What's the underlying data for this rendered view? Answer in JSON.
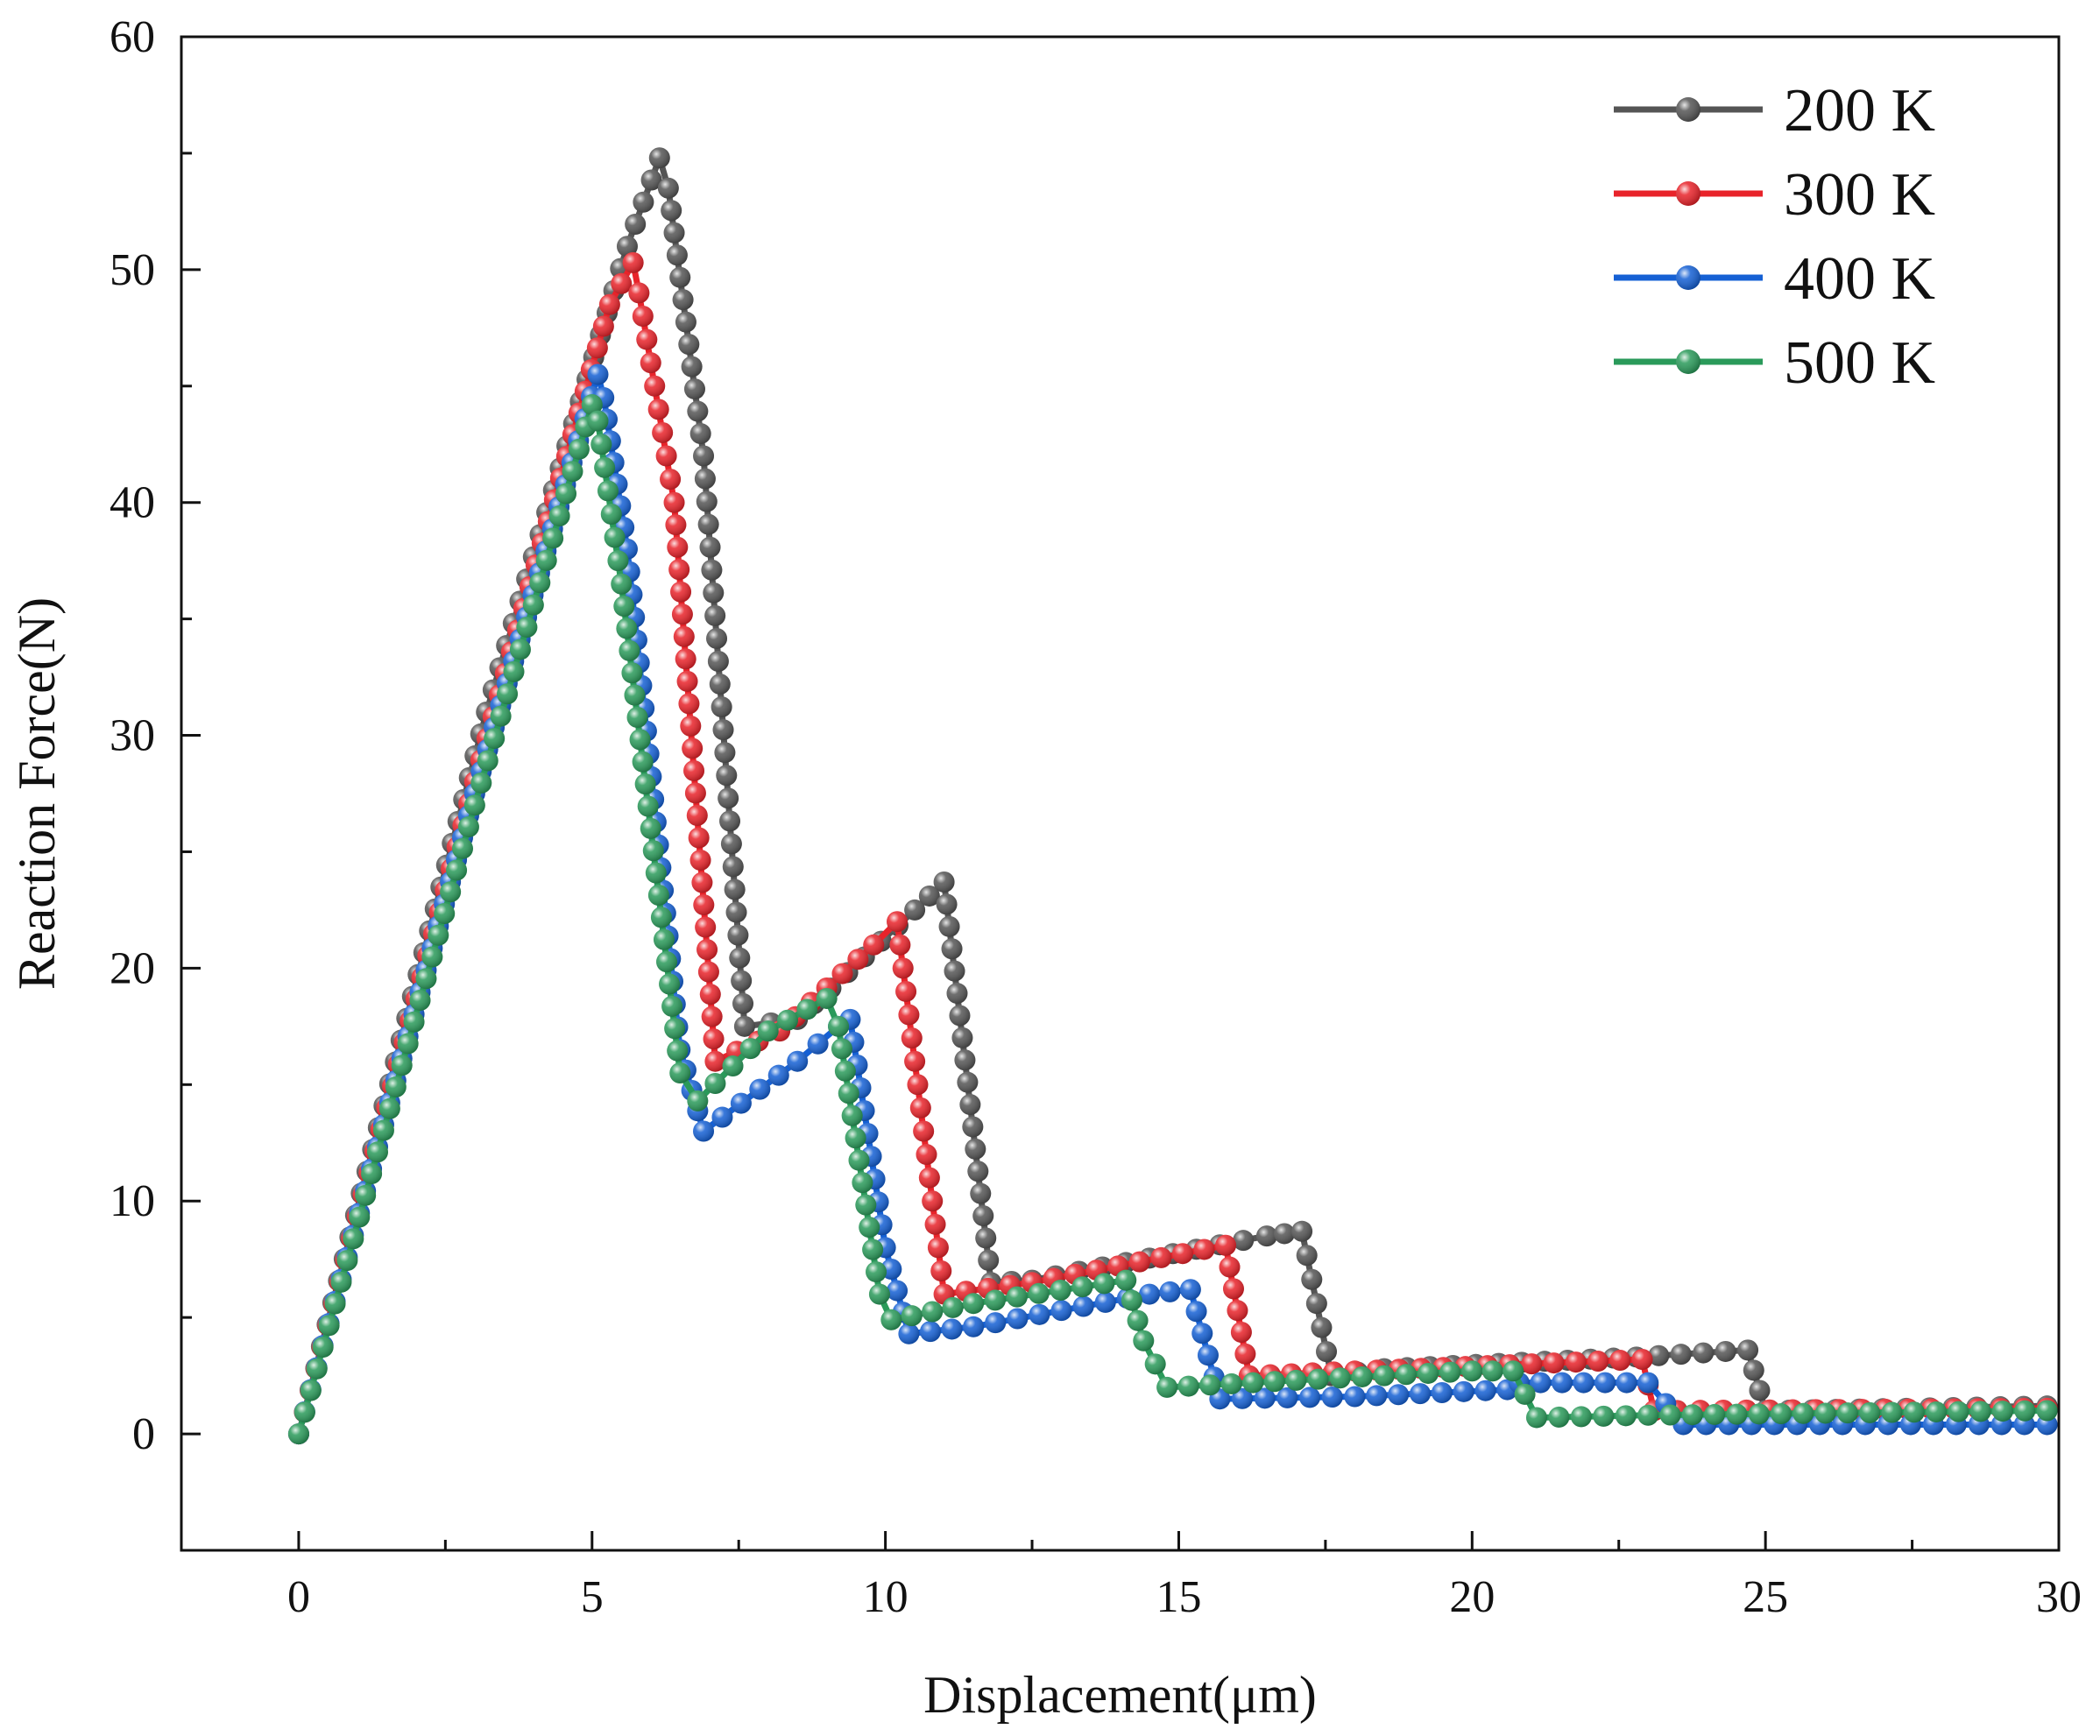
{
  "chart_data": {
    "type": "line",
    "title": "",
    "xlabel": "Displacement(μm)",
    "ylabel": "Reaction Force(N)",
    "xlim": [
      -2,
      30
    ],
    "ylim": [
      -5,
      60
    ],
    "xticks": [
      0,
      5,
      10,
      15,
      20,
      25,
      30
    ],
    "yticks": [
      0,
      10,
      20,
      30,
      40,
      50,
      60
    ],
    "xtick_labels": [
      "0",
      "5",
      "10",
      "15",
      "20",
      "25",
      "30"
    ],
    "ytick_labels": [
      "0",
      "10",
      "20",
      "30",
      "40",
      "50",
      "60"
    ],
    "grid": false,
    "legend_position": "top-right",
    "marker": "circle",
    "series": [
      {
        "name": "200 K",
        "color": "#555555",
        "points": [
          [
            0,
            0
          ],
          [
            3.2,
            31
          ],
          [
            5.6,
            51
          ],
          [
            6.15,
            54.8
          ],
          [
            6.3,
            53.5
          ],
          [
            6.9,
            42
          ],
          [
            7.6,
            17.5
          ],
          [
            8.5,
            17.8
          ],
          [
            10.5,
            22.5
          ],
          [
            11,
            23.7
          ],
          [
            11.8,
            6.5
          ],
          [
            12.5,
            6.6
          ],
          [
            16.5,
            8.5
          ],
          [
            17.1,
            8.7
          ],
          [
            17.6,
            2.5
          ],
          [
            18.5,
            2.8
          ],
          [
            22.8,
            3.3
          ],
          [
            24.7,
            3.6
          ],
          [
            25.0,
            1.0
          ],
          [
            29.8,
            1.2
          ]
        ]
      },
      {
        "name": "300 K",
        "color": "#e8232a",
        "points": [
          [
            0,
            0
          ],
          [
            3,
            28
          ],
          [
            5.3,
            48.5
          ],
          [
            5.7,
            50.3
          ],
          [
            5.8,
            49
          ],
          [
            6.4,
            40
          ],
          [
            7.1,
            16
          ],
          [
            8.2,
            17.3
          ],
          [
            9.8,
            21
          ],
          [
            10.2,
            22
          ],
          [
            11.0,
            6.0
          ],
          [
            12.5,
            6.5
          ],
          [
            15.8,
            8.1
          ],
          [
            16.2,
            2.5
          ],
          [
            18,
            2.7
          ],
          [
            22.9,
            3.2
          ],
          [
            23.1,
            1.0
          ],
          [
            29.8,
            1.1
          ]
        ]
      },
      {
        "name": "400 K",
        "color": "#1560d4",
        "points": [
          [
            0,
            0
          ],
          [
            3,
            27.5
          ],
          [
            5.1,
            45.5
          ],
          [
            5.2,
            44.5
          ],
          [
            5.6,
            38
          ],
          [
            6.5,
            16.5
          ],
          [
            6.9,
            13
          ],
          [
            8.5,
            16
          ],
          [
            9.2,
            17.5
          ],
          [
            9.4,
            17.8
          ],
          [
            10.0,
            8
          ],
          [
            10.4,
            4.3
          ],
          [
            11.5,
            4.6
          ],
          [
            14.5,
            6.0
          ],
          [
            15.2,
            6.2
          ],
          [
            15.7,
            1.5
          ],
          [
            18,
            1.6
          ],
          [
            20.6,
            1.9
          ],
          [
            20.8,
            2.2
          ],
          [
            23.0,
            2.2
          ],
          [
            23.6,
            0.4
          ],
          [
            29.8,
            0.4
          ]
        ]
      },
      {
        "name": "500 K",
        "color": "#2a9a5a",
        "points": [
          [
            0,
            0
          ],
          [
            3,
            27
          ],
          [
            5.0,
            44.2
          ],
          [
            5.1,
            43.5
          ],
          [
            5.5,
            36.5
          ],
          [
            6.5,
            15.5
          ],
          [
            6.8,
            14.3
          ],
          [
            8,
            17.3
          ],
          [
            9.0,
            18.7
          ],
          [
            9.2,
            17.5
          ],
          [
            9.9,
            6
          ],
          [
            10.1,
            4.9
          ],
          [
            11.5,
            5.6
          ],
          [
            14.1,
            6.6
          ],
          [
            14.4,
            4
          ],
          [
            14.8,
            2.0
          ],
          [
            17,
            2.3
          ],
          [
            20,
            2.7
          ],
          [
            20.7,
            2.7
          ],
          [
            21.1,
            0.7
          ],
          [
            23,
            0.8
          ],
          [
            29.8,
            1.0
          ]
        ]
      }
    ]
  }
}
